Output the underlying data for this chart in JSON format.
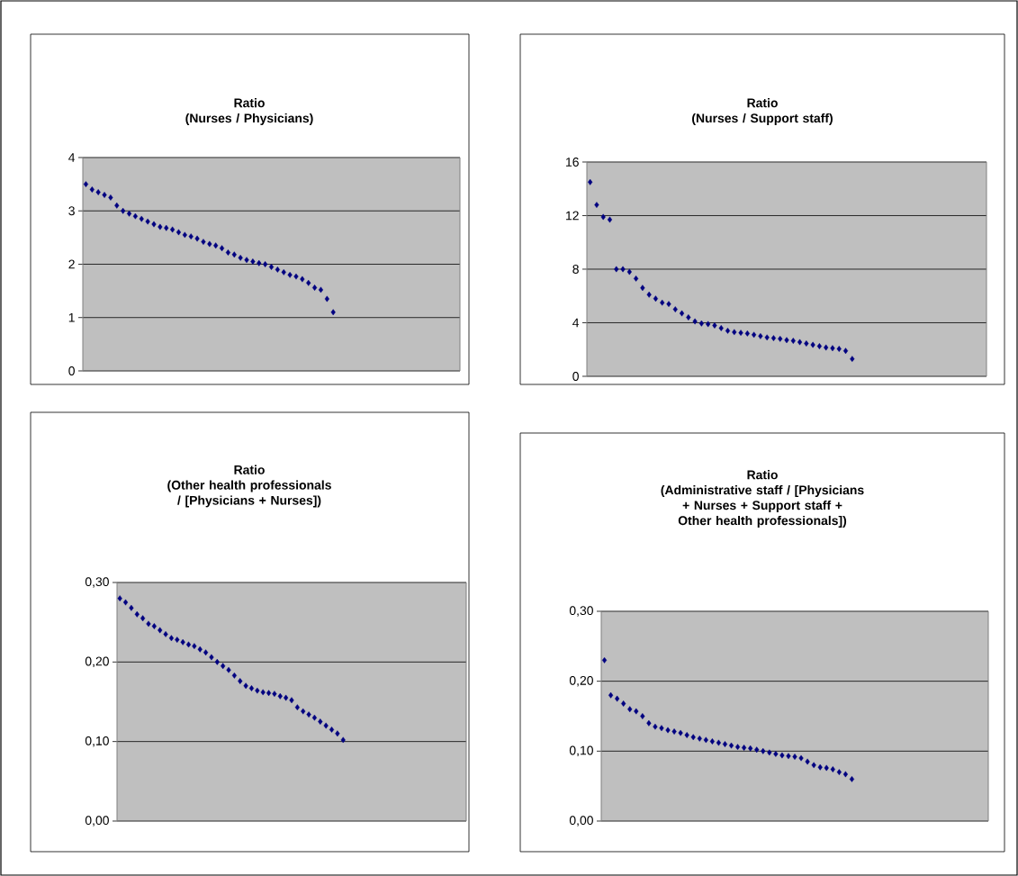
{
  "chart_data": [
    {
      "type": "scatter",
      "title": "Ratio",
      "subtitle": "(Nurses / Physicians)",
      "categories": [
        null,
        null,
        null,
        null,
        null,
        null,
        null,
        null,
        null,
        null,
        null,
        null,
        null,
        null,
        null,
        null,
        null,
        null,
        null,
        null,
        null,
        null,
        null,
        null,
        null,
        null,
        null,
        null,
        null,
        null,
        null,
        null,
        null,
        null,
        null,
        null,
        null,
        null,
        null,
        null,
        null,
        null,
        null,
        null,
        null,
        null,
        null,
        null,
        null,
        null,
        null,
        null,
        null,
        null,
        null,
        null,
        null,
        null,
        null,
        null,
        null
      ],
      "color": "#000080",
      "marker": "diamond",
      "grid": "y",
      "ylim": [
        0,
        4
      ],
      "yticks": [
        0,
        1,
        2,
        3,
        4
      ],
      "values": [
        3.5,
        3.4,
        3.35,
        3.3,
        3.25,
        3.1,
        3.0,
        2.95,
        2.9,
        2.85,
        2.8,
        2.75,
        2.7,
        2.68,
        2.65,
        2.6,
        2.55,
        2.52,
        2.48,
        2.42,
        2.38,
        2.35,
        2.3,
        2.22,
        2.18,
        2.12,
        2.08,
        2.05,
        2.02,
        2.0,
        1.95,
        1.9,
        1.85,
        1.8,
        1.77,
        1.72,
        1.65,
        1.56,
        1.52,
        1.35,
        1.1,
        null,
        null,
        null,
        null,
        null,
        null,
        null,
        null,
        null,
        null,
        null,
        null,
        null,
        null,
        null,
        null,
        null,
        null,
        null,
        null
      ]
    },
    {
      "type": "scatter",
      "title": "Ratio",
      "subtitle": "(Nurses / Support staff)",
      "categories": [
        null,
        null,
        null,
        null,
        null,
        null,
        null,
        null,
        null,
        null,
        null,
        null,
        null,
        null,
        null,
        null,
        null,
        null,
        null,
        null,
        null,
        null,
        null,
        null,
        null,
        null,
        null,
        null,
        null,
        null,
        null,
        null,
        null,
        null,
        null,
        null,
        null,
        null,
        null,
        null,
        null,
        null,
        null,
        null,
        null,
        null,
        null,
        null,
        null,
        null,
        null,
        null,
        null,
        null,
        null,
        null,
        null,
        null,
        null,
        null,
        null
      ],
      "color": "#000080",
      "marker": "diamond",
      "grid": "y",
      "ylim": [
        0,
        16
      ],
      "yticks": [
        0,
        4,
        8,
        12,
        16
      ],
      "values": [
        14.5,
        12.8,
        11.9,
        11.7,
        8.0,
        8.0,
        7.8,
        7.3,
        6.6,
        6.1,
        5.8,
        5.5,
        5.4,
        5.0,
        4.7,
        4.4,
        4.1,
        3.95,
        3.9,
        3.8,
        3.6,
        3.4,
        3.3,
        3.25,
        3.2,
        3.1,
        3.0,
        2.9,
        2.85,
        2.8,
        2.7,
        2.65,
        2.55,
        2.45,
        2.35,
        2.25,
        2.15,
        2.1,
        2.05,
        1.9,
        1.3,
        null,
        null,
        null,
        null,
        null,
        null,
        null,
        null,
        null,
        null,
        null,
        null,
        null,
        null,
        null,
        null,
        null,
        null,
        null,
        null
      ]
    },
    {
      "type": "scatter",
      "title": "Ratio",
      "subtitle": "(Other health professionals / [Physicians + Nurses])",
      "categories": [
        null,
        null,
        null,
        null,
        null,
        null,
        null,
        null,
        null,
        null,
        null,
        null,
        null,
        null,
        null,
        null,
        null,
        null,
        null,
        null,
        null,
        null,
        null,
        null,
        null,
        null,
        null,
        null,
        null,
        null,
        null,
        null,
        null,
        null,
        null,
        null,
        null,
        null,
        null,
        null,
        null,
        null,
        null,
        null,
        null,
        null,
        null,
        null,
        null,
        null,
        null,
        null,
        null,
        null,
        null,
        null,
        null,
        null,
        null,
        null,
        null
      ],
      "color": "#000080",
      "marker": "diamond",
      "grid": "y",
      "ylim": [
        0,
        0.3
      ],
      "yticks": [
        {
          "value": 0,
          "label": "0,00"
        },
        {
          "value": 0.1,
          "label": "0,10"
        },
        {
          "value": 0.2,
          "label": "0,20"
        },
        {
          "value": 0.3,
          "label": "0,30"
        }
      ],
      "values": [
        0.28,
        0.275,
        0.268,
        0.26,
        0.255,
        0.248,
        0.245,
        0.24,
        0.235,
        0.23,
        0.228,
        0.225,
        0.222,
        0.22,
        0.216,
        0.212,
        0.206,
        0.2,
        0.195,
        0.19,
        0.183,
        0.176,
        0.17,
        0.167,
        0.164,
        0.162,
        0.161,
        0.16,
        0.157,
        0.155,
        0.152,
        0.143,
        0.138,
        0.134,
        0.13,
        0.125,
        0.12,
        0.115,
        0.11,
        0.102,
        null,
        null,
        null,
        null,
        null,
        null,
        null,
        null,
        null,
        null,
        null,
        null,
        null,
        null,
        null,
        null,
        null,
        null,
        null,
        null,
        null
      ]
    },
    {
      "type": "scatter",
      "title": "Ratio",
      "subtitle": "(Administrative staff / [Physicians + Nurses + Support staff + Other health professionals])",
      "categories": [
        null,
        null,
        null,
        null,
        null,
        null,
        null,
        null,
        null,
        null,
        null,
        null,
        null,
        null,
        null,
        null,
        null,
        null,
        null,
        null,
        null,
        null,
        null,
        null,
        null,
        null,
        null,
        null,
        null,
        null,
        null,
        null,
        null,
        null,
        null,
        null,
        null,
        null,
        null,
        null,
        null,
        null,
        null,
        null,
        null,
        null,
        null,
        null,
        null,
        null,
        null,
        null,
        null,
        null,
        null,
        null,
        null,
        null,
        null,
        null,
        null
      ],
      "color": "#000080",
      "marker": "diamond",
      "grid": "y",
      "ylim": [
        0,
        0.3
      ],
      "yticks": [
        {
          "value": 0,
          "label": "0,00"
        },
        {
          "value": 0.1,
          "label": "0,10"
        },
        {
          "value": 0.2,
          "label": "0,20"
        },
        {
          "value": 0.3,
          "label": "0,30"
        }
      ],
      "values": [
        0.23,
        0.18,
        0.175,
        0.168,
        0.16,
        0.157,
        0.15,
        0.14,
        0.135,
        0.133,
        0.13,
        0.128,
        0.126,
        0.123,
        0.12,
        0.118,
        0.116,
        0.114,
        0.112,
        0.11,
        0.108,
        0.106,
        0.105,
        0.104,
        0.102,
        0.1,
        0.098,
        0.096,
        0.094,
        0.093,
        0.092,
        0.09,
        0.085,
        0.08,
        0.077,
        0.076,
        0.074,
        0.07,
        0.067,
        0.06,
        null,
        null,
        null,
        null,
        null,
        null,
        null,
        null,
        null,
        null,
        null,
        null,
        null,
        null,
        null,
        null,
        null,
        null,
        null,
        null,
        null
      ]
    }
  ]
}
